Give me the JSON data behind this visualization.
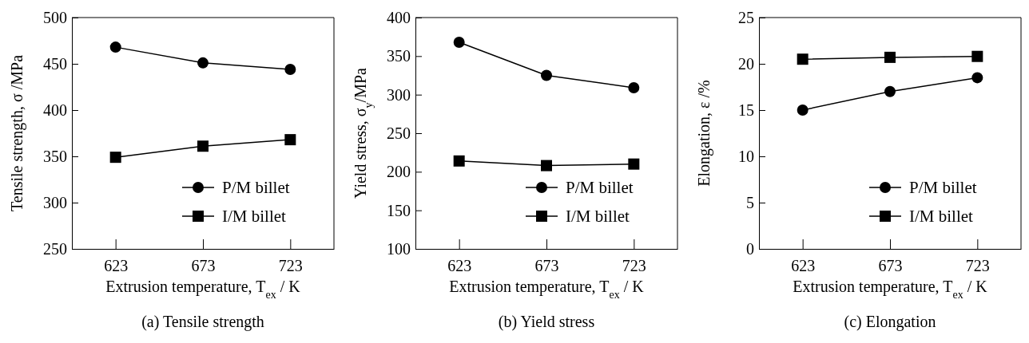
{
  "chart_data": [
    {
      "type": "line",
      "title": "(a) Tensile strength",
      "xlabel": "Extrusion temperature, T$_{ex}$ / K",
      "ylabel": "Tensile strength,  σ /MPa",
      "x": [
        623,
        673,
        723
      ],
      "xlim": [
        598,
        748
      ],
      "xticks": [
        623,
        673,
        723
      ],
      "ylim": [
        250,
        500
      ],
      "yticks": [
        250,
        300,
        350,
        400,
        450,
        500
      ],
      "legend": "bottom right",
      "grid": false,
      "series": [
        {
          "name": "P/M billet",
          "color": "#000000",
          "marker": "circle",
          "values": [
            468,
            451,
            444
          ]
        },
        {
          "name": "I/M billet",
          "color": "#000000",
          "marker": "square",
          "values": [
            349,
            361,
            368
          ]
        }
      ]
    },
    {
      "type": "line",
      "title": "(b) Yield stress",
      "xlabel": "Extrusion temperature, T$_{ex}$ / K",
      "ylabel": "Yield stress,  σ$_{y}$/MPa",
      "x": [
        623,
        673,
        723
      ],
      "xlim": [
        598,
        748
      ],
      "xticks": [
        623,
        673,
        723
      ],
      "ylim": [
        100,
        400
      ],
      "yticks": [
        100,
        150,
        200,
        250,
        300,
        350,
        400
      ],
      "legend": "bottom right",
      "grid": false,
      "series": [
        {
          "name": "P/M billet",
          "color": "#000000",
          "marker": "circle",
          "values": [
            368,
            325,
            309
          ]
        },
        {
          "name": "I/M billet",
          "color": "#000000",
          "marker": "square",
          "values": [
            214,
            208,
            210
          ]
        }
      ]
    },
    {
      "type": "line",
      "title": "(c) Elongation",
      "xlabel": "Extrusion temperature, T$_{ex}$ / K",
      "ylabel": "Elongation,  ε /%",
      "x": [
        623,
        673,
        723
      ],
      "xlim": [
        598,
        748
      ],
      "xticks": [
        623,
        673,
        723
      ],
      "ylim": [
        0,
        25
      ],
      "yticks": [
        0,
        5,
        10,
        15,
        20,
        25
      ],
      "legend": "bottom right",
      "grid": false,
      "series": [
        {
          "name": "P/M billet",
          "color": "#000000",
          "marker": "circle",
          "values": [
            15,
            17,
            18.5
          ]
        },
        {
          "name": "I/M billet",
          "color": "#000000",
          "marker": "square",
          "values": [
            20.5,
            20.7,
            20.8
          ]
        }
      ]
    }
  ]
}
